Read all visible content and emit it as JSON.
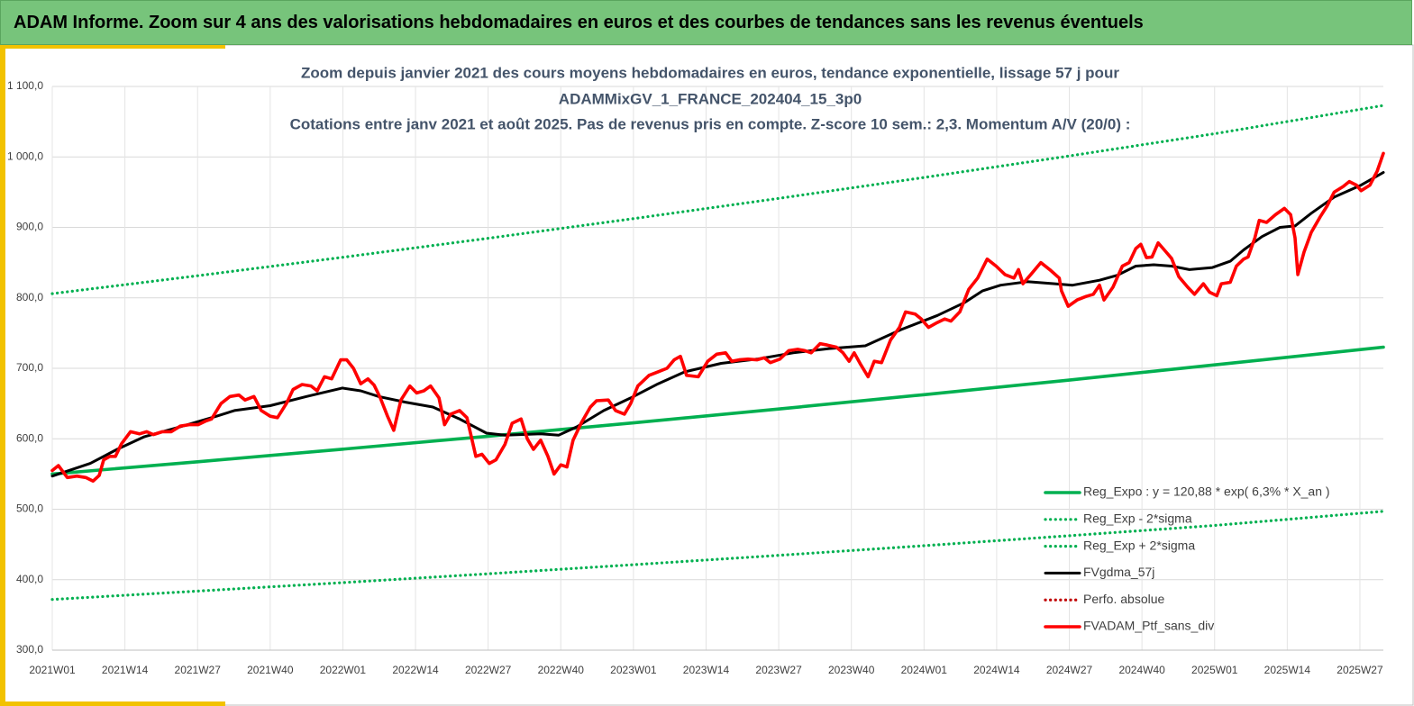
{
  "header": {
    "title": "ADAM Informe. Zoom sur 4 ans des valorisations hebdomadaires en euros et des courbes de tendances sans les revenus éventuels"
  },
  "chart_data": {
    "type": "line",
    "title": [
      "Zoom depuis janvier 2021 des cours moyens hebdomadaires  en euros, tendance exponentielle, lissage 57 j pour",
      "ADAMMixGV_1_FRANCE_202404_15_3p0",
      "Cotations entre janv 2021 et août 2025. Pas de revenus pris en compte. Z-score 10 sem.: 2,3. Momentum A/V (20/0) :"
    ],
    "xlim": [
      0,
      238.2
    ],
    "xticks": [
      {
        "value": 0,
        "label": "2021W01"
      },
      {
        "value": 13,
        "label": "2021W14"
      },
      {
        "value": 26,
        "label": "2021W27"
      },
      {
        "value": 39,
        "label": "2021W40"
      },
      {
        "value": 52,
        "label": "2022W01"
      },
      {
        "value": 65,
        "label": "2022W14"
      },
      {
        "value": 78,
        "label": "2022W27"
      },
      {
        "value": 91,
        "label": "2022W40"
      },
      {
        "value": 104,
        "label": "2023W01"
      },
      {
        "value": 117,
        "label": "2023W14"
      },
      {
        "value": 130,
        "label": "2023W27"
      },
      {
        "value": 143,
        "label": "2023W40"
      },
      {
        "value": 156,
        "label": "2024W01"
      },
      {
        "value": 169,
        "label": "2024W14"
      },
      {
        "value": 182,
        "label": "2024W27"
      },
      {
        "value": 195,
        "label": "2024W40"
      },
      {
        "value": 208,
        "label": "2025W01"
      },
      {
        "value": 221,
        "label": "2025W14"
      },
      {
        "value": 234,
        "label": "2025W27"
      }
    ],
    "ylim": [
      300,
      1100
    ],
    "yticks": [
      {
        "value": 300,
        "label": "300,0"
      },
      {
        "value": 400,
        "label": "400,0"
      },
      {
        "value": 500,
        "label": "500,0"
      },
      {
        "value": 600,
        "label": "600,0"
      },
      {
        "value": 700,
        "label": "700,0"
      },
      {
        "value": 800,
        "label": "800,0"
      },
      {
        "value": 900,
        "label": "900,0"
      },
      {
        "value": 1000,
        "label": "1 000,0"
      },
      {
        "value": 1100,
        "label": "1 100,0"
      }
    ],
    "grid": true,
    "legend": "lower-right",
    "series": [
      {
        "name": "Reg_Expo : y = 120,88 * exp( 6,3% *  X_an )",
        "color": "#00b050",
        "style": "solid",
        "x": [
          0,
          26,
          52,
          78,
          104,
          130,
          156,
          182,
          208,
          238.2
        ],
        "values": [
          550,
          567.3,
          585.2,
          603.6,
          622.6,
          642.2,
          662.5,
          683.3,
          704.9,
          730
        ]
      },
      {
        "name": "Reg_Exp - 2*sigma",
        "color": "#00b050",
        "style": "dotted",
        "x": [
          0,
          26,
          52,
          78,
          104,
          130,
          156,
          182,
          208,
          238.2
        ],
        "values": [
          372,
          383.8,
          395.9,
          408.4,
          421.3,
          434.6,
          448.3,
          462.4,
          477,
          497
        ]
      },
      {
        "name": "Reg_Exp + 2*sigma",
        "color": "#00b050",
        "style": "dotted",
        "x": [
          0,
          26,
          52,
          78,
          104,
          130,
          156,
          182,
          208,
          238.2
        ],
        "values": [
          806,
          831.4,
          857.6,
          884.6,
          912.4,
          941.2,
          970.8,
          1001.4,
          1032.9,
          1073
        ]
      },
      {
        "name": "FVgdma_57j",
        "color": "#000000",
        "style": "solid",
        "x": [
          0,
          6.8,
          11.6,
          16.5,
          22.9,
          29.4,
          32.6,
          39,
          45.5,
          51.9,
          55.2,
          58.4,
          63.2,
          68.1,
          72.9,
          77.7,
          81,
          87.4,
          90.6,
          93.9,
          98.7,
          103.5,
          108.4,
          113.2,
          119.7,
          126.1,
          132.6,
          139,
          145.5,
          151.9,
          158.4,
          163.2,
          166.5,
          169.7,
          174.5,
          179.4,
          182.6,
          187.4,
          190.6,
          193.9,
          197.1,
          200.3,
          203.5,
          207.6,
          210.8,
          213.2,
          216.5,
          219.7,
          222.4,
          225.3,
          229.4,
          234.2,
          238.2
        ],
        "values": [
          547,
          565,
          585,
          603,
          617,
          632,
          640,
          647,
          660,
          672,
          668,
          660,
          652,
          645,
          628,
          608,
          605,
          607,
          605,
          617,
          640,
          658,
          678,
          695,
          707,
          713,
          722,
          728,
          732,
          755,
          775,
          793,
          810,
          818,
          823,
          820,
          818,
          825,
          832,
          845,
          847,
          845,
          840,
          843,
          852,
          868,
          887,
          900,
          902,
          920,
          943,
          960,
          978
        ]
      },
      {
        "name": "Perfo. absolue",
        "color": "#c00000",
        "style": "dotted",
        "x": [],
        "values": []
      },
      {
        "name": "FVADAM_Ptf_sans_div",
        "color": "#ff0000",
        "style": "solid",
        "x": [
          0,
          1.1,
          2.7,
          4.4,
          6,
          7.3,
          8.4,
          9.2,
          10.3,
          11.3,
          12.4,
          14,
          15.6,
          16.9,
          18.1,
          19.7,
          21.3,
          22.9,
          24.5,
          26.1,
          27.4,
          28.5,
          30.2,
          31.8,
          33.4,
          34.5,
          36.1,
          37.4,
          39,
          40.3,
          41.9,
          43.1,
          44.7,
          46.3,
          47.4,
          48.7,
          50,
          51.6,
          52.7,
          53.9,
          55.2,
          56.5,
          57.6,
          58.7,
          60,
          61.1,
          62.4,
          64,
          65.2,
          66.5,
          67.7,
          69.2,
          70.2,
          71.3,
          72.9,
          74.2,
          75.8,
          76.9,
          78.2,
          79.4,
          81,
          82.3,
          83.9,
          85,
          86.1,
          87.4,
          88.7,
          89.8,
          91,
          92.1,
          93.2,
          94.7,
          96.3,
          97.4,
          99.5,
          100.8,
          102.4,
          103.5,
          104.8,
          106.8,
          108.4,
          110,
          111.3,
          112.4,
          113.5,
          115.6,
          117.3,
          118.9,
          120.5,
          121.6,
          122.9,
          124.5,
          126.1,
          127.4,
          128.5,
          130.2,
          131.8,
          133.4,
          134.7,
          135.8,
          137.4,
          138.7,
          140.3,
          141.5,
          142.6,
          143.5,
          144.7,
          146,
          147.1,
          148.4,
          150,
          151.6,
          152.7,
          154.4,
          155.5,
          156.8,
          158.4,
          159.7,
          160.8,
          162.4,
          164,
          165.6,
          167.3,
          168.9,
          170.5,
          172.1,
          172.9,
          173.7,
          175.3,
          176.9,
          178.5,
          180.2,
          180.6,
          181.8,
          183.4,
          185,
          186.3,
          187.4,
          188.2,
          189.8,
          191.5,
          192.7,
          193.9,
          194.8,
          195.8,
          196.8,
          197.9,
          199,
          200.3,
          201.6,
          203.2,
          204.4,
          206,
          207.1,
          208.4,
          209.2,
          210.8,
          211.9,
          213.2,
          214,
          215.2,
          216,
          217.3,
          218.9,
          220.5,
          221.6,
          222.4,
          222.9,
          224,
          225.3,
          226.9,
          228.1,
          229.4,
          231,
          232.1,
          233.4,
          234.2,
          235.8,
          237.1,
          238.2
        ],
        "values": [
          555,
          562,
          545,
          547,
          545,
          540,
          548,
          570,
          575,
          575,
          593,
          610,
          607,
          610,
          606,
          610,
          610,
          618,
          620,
          620,
          625,
          628,
          650,
          660,
          662,
          655,
          660,
          640,
          632,
          630,
          650,
          670,
          677,
          675,
          668,
          688,
          685,
          712,
          712,
          700,
          678,
          685,
          676,
          658,
          632,
          612,
          655,
          675,
          665,
          668,
          675,
          658,
          620,
          635,
          640,
          630,
          575,
          578,
          565,
          570,
          592,
          622,
          628,
          600,
          585,
          598,
          575,
          550,
          563,
          560,
          598,
          623,
          645,
          654,
          655,
          640,
          635,
          650,
          675,
          690,
          695,
          700,
          712,
          717,
          690,
          688,
          710,
          720,
          722,
          710,
          712,
          713,
          712,
          715,
          708,
          713,
          725,
          727,
          725,
          722,
          735,
          733,
          730,
          722,
          710,
          722,
          705,
          688,
          710,
          708,
          740,
          758,
          780,
          777,
          770,
          758,
          765,
          770,
          767,
          780,
          812,
          828,
          855,
          845,
          833,
          828,
          840,
          820,
          835,
          850,
          840,
          828,
          810,
          788,
          797,
          802,
          805,
          818,
          797,
          815,
          845,
          850,
          870,
          876,
          857,
          858,
          878,
          868,
          856,
          830,
          815,
          805,
          820,
          808,
          803,
          820,
          822,
          845,
          855,
          858,
          885,
          910,
          907,
          918,
          927,
          918,
          885,
          833,
          865,
          893,
          915,
          930,
          950,
          958,
          965,
          960,
          952,
          960,
          980,
          1005
        ]
      }
    ]
  }
}
